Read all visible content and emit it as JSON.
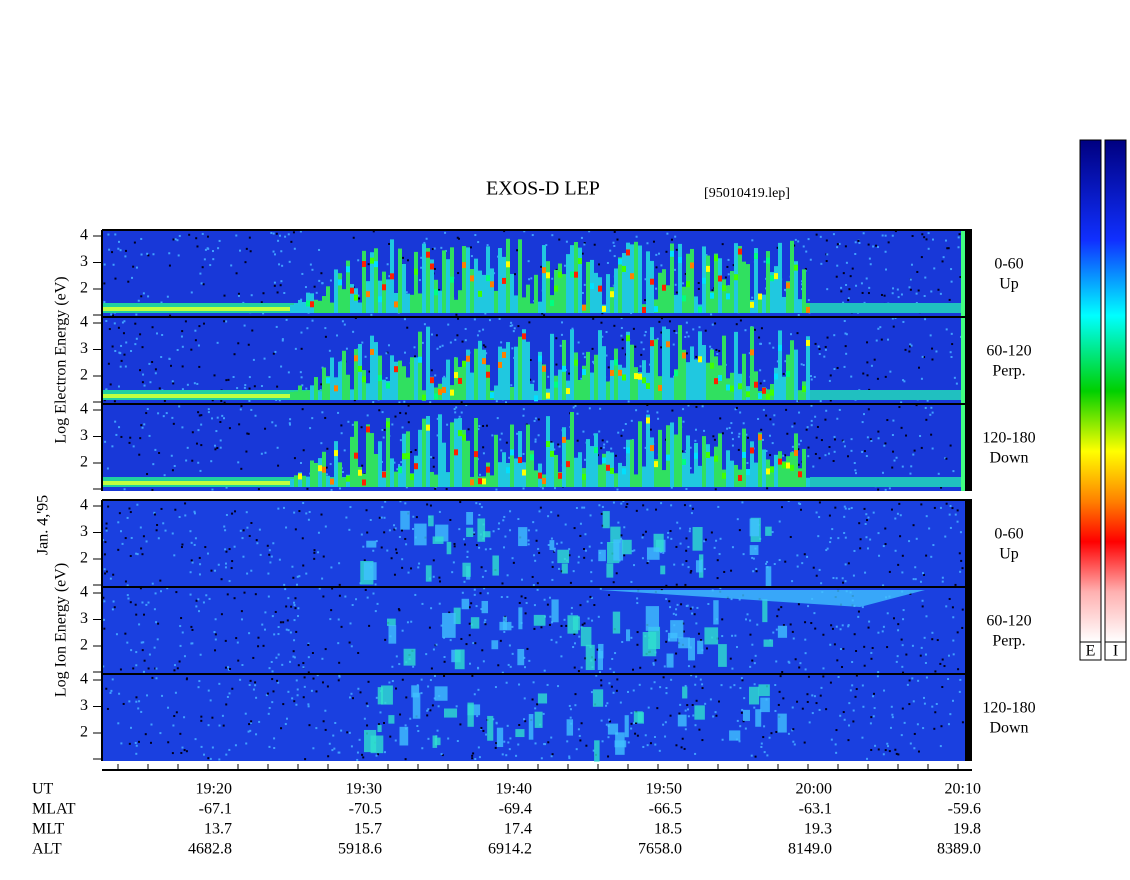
{
  "title": "EXOS-D LEP",
  "file": "[95010419.lep]",
  "date": "Jan. 4,'95",
  "electron": {
    "ylabel": "Log Electron Energy (eV)",
    "yticks": [
      "4",
      "3",
      "2"
    ],
    "panels": [
      {
        "range": "0-60",
        "dir": "Up"
      },
      {
        "range": "60-120",
        "dir": "Perp."
      },
      {
        "range": "120-180",
        "dir": "Down"
      }
    ]
  },
  "ion": {
    "ylabel": "Log Ion Energy (eV)",
    "yticks": [
      "4",
      "3",
      "2"
    ],
    "panels": [
      {
        "range": "0-60",
        "dir": "Up"
      },
      {
        "range": "60-120",
        "dir": "Perp."
      },
      {
        "range": "120-180",
        "dir": "Down"
      }
    ]
  },
  "rows": [
    {
      "name": "UT",
      "values": [
        "19:20",
        "19:30",
        "19:40",
        "19:50",
        "20:00",
        "20:10"
      ]
    },
    {
      "name": "MLAT",
      "values": [
        "-67.1",
        "-70.5",
        "-69.4",
        "-66.5",
        "-63.1",
        "-59.6"
      ]
    },
    {
      "name": "MLT",
      "values": [
        "13.7",
        "15.7",
        "17.4",
        "18.5",
        "19.3",
        "19.8"
      ]
    },
    {
      "name": "ALT",
      "values": [
        "4682.8",
        "5918.6",
        "6914.2",
        "7658.0",
        "8149.0",
        "8389.0"
      ]
    }
  ],
  "colorbars": [
    "E",
    "I"
  ]
}
